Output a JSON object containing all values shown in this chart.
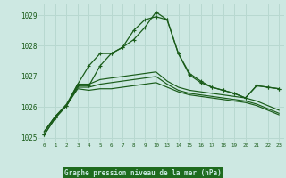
{
  "bg_color": "#cde8e2",
  "grid_color": "#b8d8d0",
  "line_color": "#1a5c1a",
  "ylim": [
    1024.85,
    1029.35
  ],
  "yticks": [
    1025,
    1026,
    1027,
    1028,
    1029
  ],
  "xticks_left": [
    0,
    1,
    2,
    3,
    4,
    5,
    6,
    7,
    8,
    9,
    10
  ],
  "xticks_right": [
    13,
    14,
    15,
    16,
    17,
    18,
    19,
    20,
    21,
    22,
    23
  ],
  "title": "Graphe pression niveau de la mer (hPa)",
  "title_fg": "#c8e8e0",
  "title_bg": "#1e6b1e",
  "series": [
    {
      "x": [
        0,
        1,
        2,
        3,
        4,
        5,
        6,
        7,
        8,
        9,
        10,
        13,
        14,
        15,
        16,
        17,
        18,
        19,
        20,
        21,
        22,
        23
      ],
      "y": [
        1025.1,
        1025.65,
        1026.05,
        1026.75,
        1027.35,
        1027.75,
        1027.75,
        1027.95,
        1028.5,
        1028.85,
        1028.95,
        1028.85,
        1027.75,
        1027.05,
        1026.8,
        1026.65,
        1026.55,
        1026.45,
        1026.3,
        1026.7,
        1026.65,
        1026.6
      ],
      "marker": true,
      "lw": 0.9
    },
    {
      "x": [
        0,
        1,
        2,
        3,
        4,
        5,
        6,
        7,
        8,
        9,
        10,
        13,
        14,
        15,
        16,
        17,
        18,
        19,
        20,
        21,
        22,
        23
      ],
      "y": [
        1025.1,
        1025.65,
        1026.05,
        1026.7,
        1026.7,
        1027.35,
        1027.75,
        1027.95,
        1028.2,
        1028.6,
        1029.1,
        1028.85,
        1027.75,
        1027.1,
        1026.85,
        1026.65,
        1026.55,
        1026.45,
        1026.3,
        1026.7,
        1026.65,
        1026.6
      ],
      "marker": true,
      "lw": 0.9
    },
    {
      "x": [
        0,
        1,
        2,
        3,
        4,
        5,
        6,
        7,
        8,
        9,
        10,
        13,
        14,
        15,
        16,
        17,
        18,
        19,
        20,
        21,
        22,
        23
      ],
      "y": [
        1025.2,
        1025.7,
        1026.05,
        1026.6,
        1026.55,
        1026.6,
        1026.6,
        1026.65,
        1026.7,
        1026.75,
        1026.8,
        1026.65,
        1026.5,
        1026.4,
        1026.35,
        1026.3,
        1026.25,
        1026.2,
        1026.15,
        1026.05,
        1025.9,
        1025.75
      ],
      "marker": false,
      "lw": 0.85
    },
    {
      "x": [
        0,
        1,
        2,
        3,
        4,
        5,
        6,
        7,
        8,
        9,
        10,
        13,
        14,
        15,
        16,
        17,
        18,
        19,
        20,
        21,
        22,
        23
      ],
      "y": [
        1025.2,
        1025.7,
        1026.05,
        1026.65,
        1026.65,
        1026.75,
        1026.8,
        1026.85,
        1026.9,
        1026.95,
        1027.0,
        1026.75,
        1026.55,
        1026.45,
        1026.4,
        1026.35,
        1026.3,
        1026.25,
        1026.2,
        1026.1,
        1025.95,
        1025.8
      ],
      "marker": false,
      "lw": 0.85
    },
    {
      "x": [
        0,
        1,
        2,
        3,
        4,
        5,
        6,
        7,
        8,
        9,
        10,
        13,
        14,
        15,
        16,
        17,
        18,
        19,
        20,
        21,
        22,
        23
      ],
      "y": [
        1025.2,
        1025.7,
        1026.1,
        1026.75,
        1026.75,
        1026.9,
        1026.95,
        1027.0,
        1027.05,
        1027.1,
        1027.15,
        1026.85,
        1026.65,
        1026.55,
        1026.5,
        1026.45,
        1026.4,
        1026.35,
        1026.3,
        1026.2,
        1026.05,
        1025.9
      ],
      "marker": false,
      "lw": 0.85
    }
  ]
}
